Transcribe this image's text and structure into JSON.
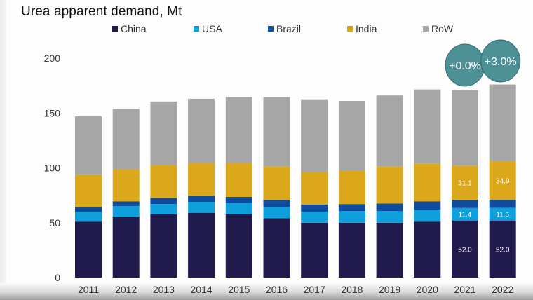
{
  "chart_data": {
    "type": "bar",
    "stacked": true,
    "title": "Urea apparent demand, Mt",
    "xlabel": "",
    "ylabel": "",
    "ylim": [
      0,
      200
    ],
    "yticks": [
      0,
      50,
      100,
      150,
      200
    ],
    "grid": false,
    "legend_position": "top",
    "categories": [
      "2011",
      "2012",
      "2013",
      "2014",
      "2015",
      "2016",
      "2017",
      "2018",
      "2019",
      "2020",
      "2021",
      "2022"
    ],
    "series": [
      {
        "name": "China",
        "color": "#211a4d",
        "values": [
          51,
          55,
          57.5,
          59,
          57.5,
          54,
          50,
          50,
          50,
          51,
          52.0,
          52.0
        ]
      },
      {
        "name": "USA",
        "color": "#0ea0dd",
        "values": [
          9,
          10,
          9.5,
          10,
          10.5,
          10.5,
          10,
          10.5,
          10.5,
          11,
          11.4,
          11.6
        ]
      },
      {
        "name": "Brazil",
        "color": "#0f4c9d",
        "values": [
          4.5,
          4.5,
          5.5,
          5.5,
          5.5,
          6.5,
          6.5,
          6.5,
          7,
          7.5,
          7.5,
          7.5
        ]
      },
      {
        "name": "India",
        "color": "#daa81a",
        "values": [
          29.5,
          29.5,
          30,
          30,
          31,
          30.5,
          30,
          30.5,
          34,
          34.5,
          31.1,
          34.9
        ]
      },
      {
        "name": "RoW",
        "color": "#a6a6a6",
        "values": [
          53,
          55,
          58,
          58.5,
          60,
          63,
          66,
          63.5,
          64.5,
          67.5,
          69,
          70
        ]
      }
    ],
    "data_labels": [
      {
        "category": "2021",
        "series": "China",
        "text": "52.0"
      },
      {
        "category": "2022",
        "series": "China",
        "text": "52.0"
      },
      {
        "category": "2021",
        "series": "USA",
        "text": "11.4"
      },
      {
        "category": "2022",
        "series": "USA",
        "text": "11.6"
      },
      {
        "category": "2021",
        "series": "India",
        "text": "31.1"
      },
      {
        "category": "2022",
        "series": "India",
        "text": "34.9"
      }
    ],
    "annotations": [
      {
        "category": "2021",
        "text": "+0.0%",
        "color": "#4d9095"
      },
      {
        "category": "2022",
        "text": "+3.0%",
        "color": "#4d9095"
      }
    ]
  }
}
